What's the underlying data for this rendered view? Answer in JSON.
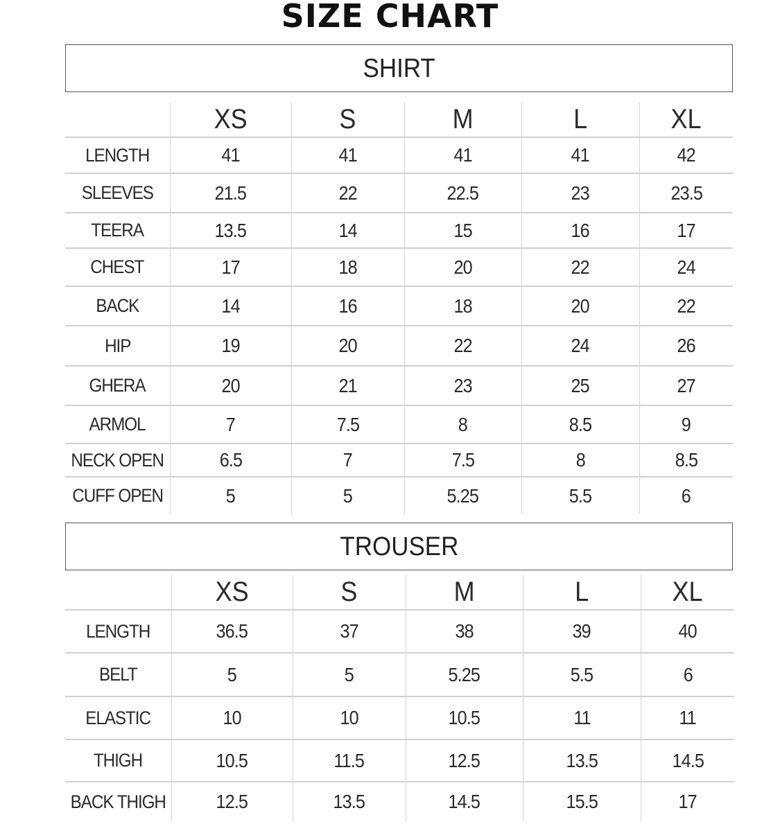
{
  "title": "SIZE CHART",
  "sizes": [
    "XS",
    "S",
    "M",
    "L",
    "XL"
  ],
  "shirt": {
    "heading": "SHIRT",
    "rows": [
      {
        "label": "LENGTH",
        "values": [
          "41",
          "41",
          "41",
          "41",
          "42"
        ]
      },
      {
        "label": "SLEEVES",
        "values": [
          "21.5",
          "22",
          "22.5",
          "23",
          "23.5"
        ]
      },
      {
        "label": "TEERA",
        "values": [
          "13.5",
          "14",
          "15",
          "16",
          "17"
        ]
      },
      {
        "label": "CHEST",
        "values": [
          "17",
          "18",
          "20",
          "22",
          "24"
        ]
      },
      {
        "label": "BACK",
        "values": [
          "14",
          "16",
          "18",
          "20",
          "22"
        ]
      },
      {
        "label": "HIP",
        "values": [
          "19",
          "20",
          "22",
          "24",
          "26"
        ]
      },
      {
        "label": "GHERA",
        "values": [
          "20",
          "21",
          "23",
          "25",
          "27"
        ]
      },
      {
        "label": "ARMOL",
        "values": [
          "7",
          "7.5",
          "8",
          "8.5",
          "9"
        ]
      },
      {
        "label": "NECK OPEN",
        "values": [
          "6.5",
          "7",
          "7.5",
          "8",
          "8.5"
        ]
      },
      {
        "label": "CUFF OPEN",
        "values": [
          "5",
          "5",
          "5.25",
          "5.5",
          "6"
        ]
      }
    ]
  },
  "trouser": {
    "heading": "TROUSER",
    "rows": [
      {
        "label": "LENGTH",
        "values": [
          "36.5",
          "37",
          "38",
          "39",
          "40"
        ]
      },
      {
        "label": "BELT",
        "values": [
          "5",
          "5",
          "5.25",
          "5.5",
          "6"
        ]
      },
      {
        "label": "ELASTIC",
        "values": [
          "10",
          "10",
          "10.5",
          "11",
          "11"
        ]
      },
      {
        "label": "THIGH",
        "values": [
          "10.5",
          "11.5",
          "12.5",
          "13.5",
          "14.5"
        ]
      },
      {
        "label": "BACK THIGH",
        "values": [
          "12.5",
          "13.5",
          "14.5",
          "15.5",
          "17"
        ]
      }
    ]
  }
}
